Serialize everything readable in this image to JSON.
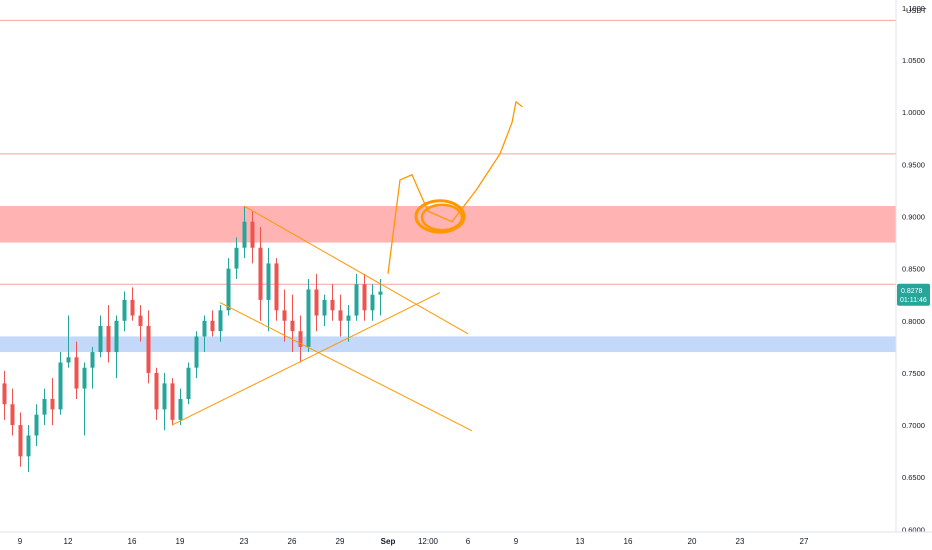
{
  "chart_data": {
    "type": "candlestick",
    "currency_label": "USDT",
    "y_ticks": [
      "1.1000",
      "1.0500",
      "1.0000",
      "0.9500",
      "0.9000",
      "0.8500",
      "0.8000",
      "0.7500",
      "0.7000",
      "0.6500",
      "0.6000"
    ],
    "ylim": [
      0.5975,
      1.1075
    ],
    "x_ticks": [
      {
        "label": "9",
        "bar": 2
      },
      {
        "label": "12",
        "bar": 8
      },
      {
        "label": "16",
        "bar": 16
      },
      {
        "label": "19",
        "bar": 22
      },
      {
        "label": "23",
        "bar": 30
      },
      {
        "label": "26",
        "bar": 36
      },
      {
        "label": "29",
        "bar": 42
      },
      {
        "label": "Sep",
        "bar": 48,
        "bold": true
      },
      {
        "label": "12:00",
        "bar": 53
      },
      {
        "label": "6",
        "bar": 58
      },
      {
        "label": "9",
        "bar": 64
      },
      {
        "label": "13",
        "bar": 72
      },
      {
        "label": "16",
        "bar": 78
      },
      {
        "label": "20",
        "bar": 86
      },
      {
        "label": "23",
        "bar": 92
      },
      {
        "label": "27",
        "bar": 100
      }
    ],
    "last_price": {
      "value": "0.8278",
      "countdown": "01:11:46",
      "level": 0.8278,
      "color": "#26a69a"
    },
    "horizontal_lines": [
      {
        "level": 1.088,
        "color": "#f7a29e"
      },
      {
        "level": 0.96,
        "color": "#f7a29e"
      },
      {
        "level": 0.835,
        "color": "#f7a29e"
      }
    ],
    "zones": [
      {
        "from": 0.875,
        "to": 0.91,
        "color": "#ffb3b3"
      },
      {
        "from": 0.77,
        "to": 0.785,
        "color": "#c4d8fa"
      }
    ],
    "series": [
      {
        "values": [
          [
            0.74,
            0.752,
            0.705,
            0.72
          ],
          [
            0.72,
            0.735,
            0.69,
            0.7
          ],
          [
            0.7,
            0.712,
            0.66,
            0.67
          ],
          [
            0.67,
            0.7,
            0.655,
            0.69
          ],
          [
            0.69,
            0.72,
            0.68,
            0.71
          ],
          [
            0.71,
            0.735,
            0.7,
            0.725
          ],
          [
            0.725,
            0.745,
            0.7,
            0.715
          ],
          [
            0.715,
            0.77,
            0.71,
            0.76
          ],
          [
            0.76,
            0.805,
            0.755,
            0.765
          ],
          [
            0.765,
            0.78,
            0.725,
            0.735
          ],
          [
            0.735,
            0.76,
            0.69,
            0.755
          ],
          [
            0.755,
            0.775,
            0.735,
            0.77
          ],
          [
            0.77,
            0.805,
            0.765,
            0.795
          ],
          [
            0.795,
            0.815,
            0.76,
            0.77
          ],
          [
            0.77,
            0.805,
            0.745,
            0.8
          ],
          [
            0.8,
            0.828,
            0.79,
            0.82
          ],
          [
            0.82,
            0.832,
            0.8,
            0.805
          ],
          [
            0.805,
            0.815,
            0.78,
            0.795
          ],
          [
            0.795,
            0.81,
            0.74,
            0.75
          ],
          [
            0.75,
            0.755,
            0.705,
            0.715
          ],
          [
            0.715,
            0.75,
            0.695,
            0.74
          ],
          [
            0.74,
            0.745,
            0.7,
            0.705
          ],
          [
            0.705,
            0.735,
            0.7,
            0.725
          ],
          [
            0.725,
            0.76,
            0.72,
            0.755
          ],
          [
            0.755,
            0.79,
            0.745,
            0.785
          ],
          [
            0.785,
            0.805,
            0.77,
            0.8
          ],
          [
            0.8,
            0.81,
            0.785,
            0.79
          ],
          [
            0.79,
            0.815,
            0.78,
            0.81
          ],
          [
            0.81,
            0.86,
            0.805,
            0.85
          ],
          [
            0.85,
            0.88,
            0.84,
            0.87
          ],
          [
            0.87,
            0.91,
            0.86,
            0.895
          ],
          [
            0.895,
            0.905,
            0.855,
            0.87
          ],
          [
            0.87,
            0.89,
            0.8,
            0.82
          ],
          [
            0.82,
            0.87,
            0.79,
            0.855
          ],
          [
            0.855,
            0.86,
            0.8,
            0.81
          ],
          [
            0.81,
            0.83,
            0.78,
            0.8
          ],
          [
            0.8,
            0.825,
            0.77,
            0.79
          ],
          [
            0.79,
            0.805,
            0.76,
            0.775
          ],
          [
            0.775,
            0.84,
            0.77,
            0.83
          ],
          [
            0.83,
            0.845,
            0.79,
            0.805
          ],
          [
            0.805,
            0.825,
            0.795,
            0.82
          ],
          [
            0.82,
            0.835,
            0.8,
            0.81
          ],
          [
            0.81,
            0.825,
            0.785,
            0.8
          ],
          [
            0.8,
            0.815,
            0.78,
            0.805
          ],
          [
            0.805,
            0.845,
            0.8,
            0.835
          ],
          [
            0.835,
            0.845,
            0.8,
            0.81
          ],
          [
            0.81,
            0.835,
            0.8,
            0.825
          ],
          [
            0.825,
            0.84,
            0.805,
            0.828
          ]
        ]
      }
    ],
    "drawings": {
      "color": "#ff9800",
      "lines": [
        {
          "from": [
            30,
            0.91
          ],
          "to": [
            58,
            0.7875
          ]
        },
        {
          "from": [
            27,
            0.8175
          ],
          "to": [
            58.5,
            0.6945
          ]
        },
        {
          "from": [
            21,
            0.7
          ],
          "to": [
            54.5,
            0.827
          ]
        }
      ],
      "projection_path": [
        [
          48,
          0.845
        ],
        [
          49.5,
          0.935
        ],
        [
          51,
          0.94
        ],
        [
          53,
          0.905
        ],
        [
          56,
          0.895
        ],
        [
          59,
          0.925
        ],
        [
          62,
          0.96
        ],
        [
          63.5,
          0.99
        ],
        [
          64,
          1.01
        ],
        [
          64.8,
          1.005
        ]
      ],
      "ellipse": {
        "center": [
          54.5,
          0.9
        ],
        "radius_bars": 3.0,
        "radius_value": 0.015
      }
    }
  }
}
